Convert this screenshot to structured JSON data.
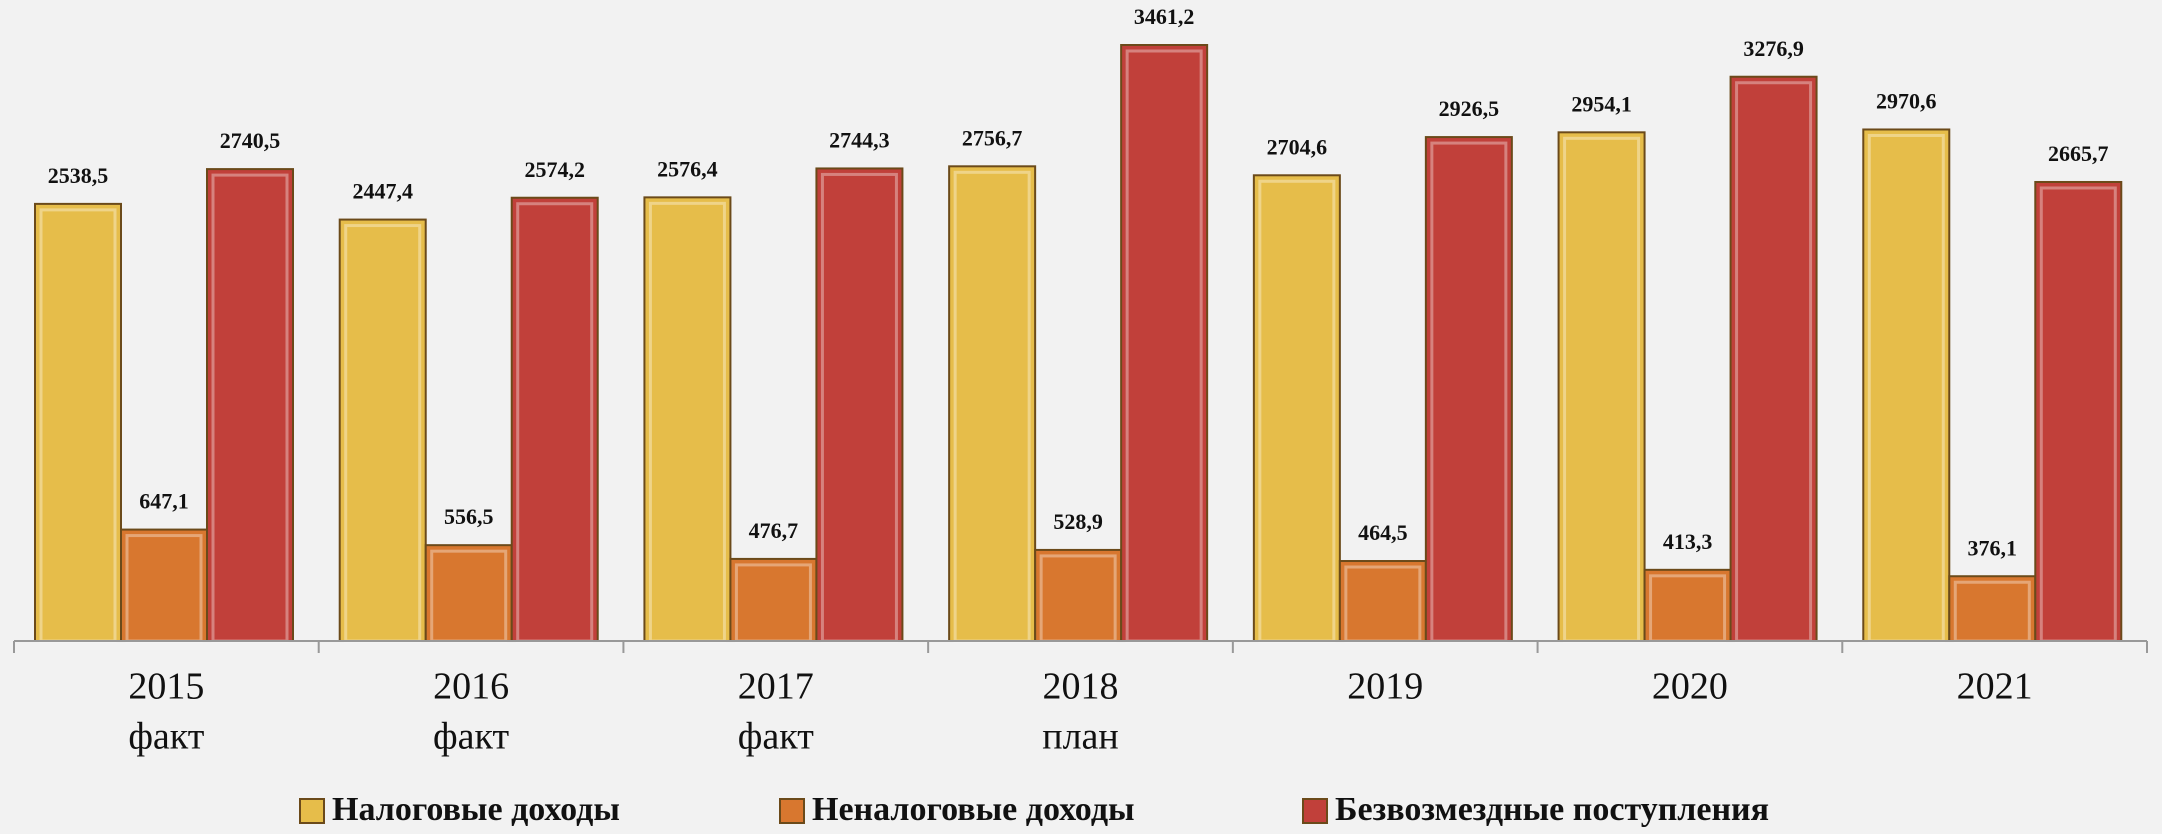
{
  "chart_data": {
    "type": "bar",
    "categories": [
      "2015",
      "2016",
      "2017",
      "2018",
      "2019",
      "2020",
      "2021"
    ],
    "category_notes": [
      "факт",
      "факт",
      "факт",
      "план",
      null,
      null,
      null
    ],
    "series": [
      {
        "name": "Налоговые доходы",
        "color": "#e6bd4a",
        "values": [
          2538.5,
          2447.4,
          2576.4,
          2756.7,
          2704.6,
          2954.1,
          2970.6
        ],
        "value_labels": [
          "2538,5",
          "2447,4",
          "2576,4",
          "2756,7",
          "2704,6",
          "2954,1",
          "2970,6"
        ]
      },
      {
        "name": "Неналоговые доходы",
        "color": "#d8772f",
        "values": [
          647.1,
          556.5,
          476.7,
          528.9,
          464.5,
          413.3,
          376.1
        ],
        "value_labels": [
          "647,1",
          "556,5",
          "476,7",
          "528,9",
          "464,5",
          "413,3",
          "376,1"
        ]
      },
      {
        "name": "Безвозмездные поступления",
        "color": "#c1403a",
        "values": [
          2740.5,
          2574.2,
          2744.3,
          3461.2,
          2926.5,
          3276.9,
          2665.7
        ],
        "value_labels": [
          "2740,5",
          "2574,2",
          "2744,3",
          "3461,2",
          "2926,5",
          "3276,9",
          "2665,7"
        ]
      }
    ]
  }
}
